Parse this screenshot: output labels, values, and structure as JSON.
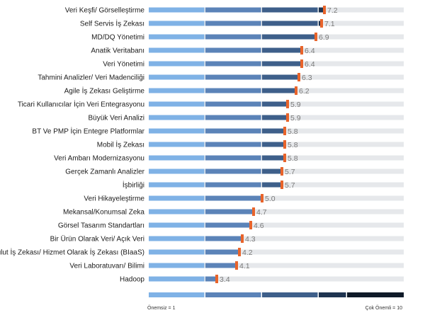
{
  "chart_data": {
    "type": "bar",
    "orientation": "horizontal",
    "categories": [
      "Veri Keşfi/ Görselleştirme",
      "Self Servis İş Zekası",
      "MD/DQ Yönetimi",
      "Anatik Veritabanı",
      "Veri Yönetimi",
      "Tahmini Analizler/ Veri Madenciliği",
      "Agile İş Zekası Geliştirme",
      "Ticari Kullanıcılar İçin Veri Entegrasyonu",
      "Büyük Veri Analizi",
      "BT Ve PMP İçin Entegre Platformlar",
      "Mobil İş Zekası",
      "Veri Ambarı Modernizasyonu",
      "Gerçek Zamanlı Analizler",
      "İşbirliği",
      "Veri Hikayeleştirme",
      "Mekansal/Konumsal Zeka",
      "Görsel Tasarım Standartları",
      "Bir Ürün Olarak Veri/ Açık Veri",
      "Bulut İş Zekası/ Hizmet Olarak İş Zekası (BIaaS)",
      "Veri Laboratuvarı/ Bilimi",
      "Hadoop"
    ],
    "values": [
      7.2,
      7.1,
      6.9,
      6.4,
      6.4,
      6.3,
      6.2,
      5.9,
      5.9,
      5.8,
      5.8,
      5.8,
      5.7,
      5.7,
      5.0,
      4.7,
      4.6,
      4.3,
      4.2,
      4.1,
      3.4
    ],
    "xlim": [
      1,
      10
    ],
    "segment_boundaries": [
      1,
      3,
      5,
      7,
      8,
      10
    ],
    "scale_labels": {
      "min": "Önemsiz = 1",
      "max": "Çok Önemli = 10"
    },
    "colors": {
      "segments": [
        "#7fb2e6",
        "#5b83b8",
        "#3e5f8a",
        "#1f3450",
        "#0f1a28"
      ],
      "track": "#e6e8eb",
      "marker": "#e8642b",
      "value_text": "#7a7a7a"
    },
    "grid": false,
    "legend": "none"
  }
}
